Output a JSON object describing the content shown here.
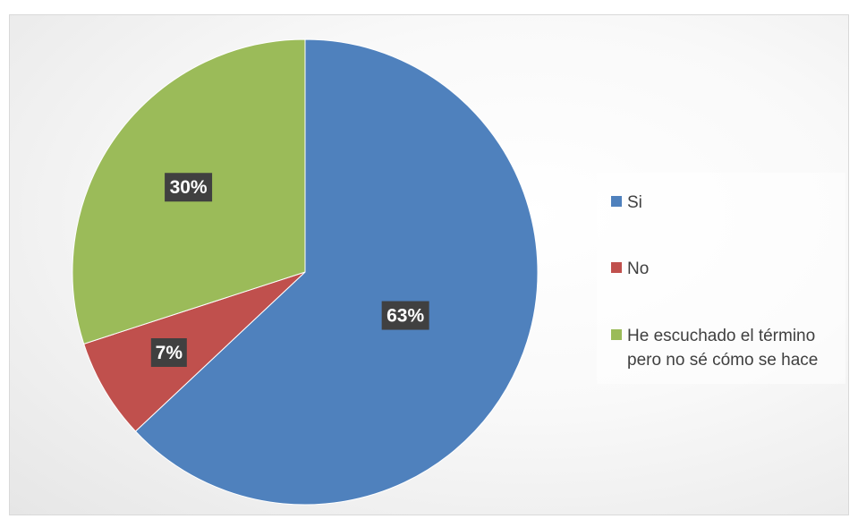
{
  "chart_data": {
    "type": "pie",
    "categories": [
      "Si",
      "No",
      "He escuchado el término pero no sé cómo se hace"
    ],
    "values": [
      63,
      7,
      30
    ],
    "data_labels": [
      "63%",
      "7%",
      "30%"
    ],
    "colors": [
      "#4F81BD",
      "#C0504D",
      "#9BBB59"
    ],
    "legend_position": "right",
    "start_angle_deg": 0,
    "direction": "clockwise"
  }
}
